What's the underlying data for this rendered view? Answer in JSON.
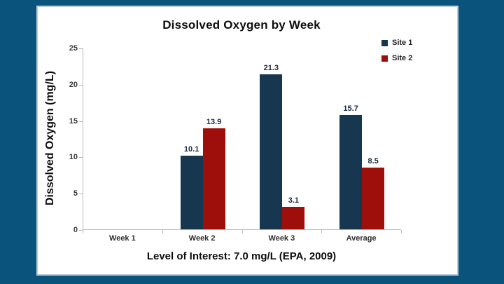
{
  "page": {
    "background_color": "#0a537d",
    "panel_background": "#ffffff",
    "panel_border_color": "#bccbd9"
  },
  "chart_data": {
    "type": "bar",
    "title": "Dissolved Oxygen by Week",
    "categories": [
      "Week 1",
      "Week 2",
      "Week 3",
      "Average"
    ],
    "series": [
      {
        "name": "Site 1",
        "color": "#17364f",
        "values": [
          null,
          10.1,
          21.3,
          15.7
        ]
      },
      {
        "name": "Site 2",
        "color": "#9e0e0b",
        "values": [
          null,
          13.9,
          3.1,
          8.5
        ]
      }
    ],
    "data_labels": true,
    "xlabel": "",
    "ylabel": "Dissolved Oxygen (mg/L)",
    "ylim": [
      0,
      25
    ],
    "yticks": [
      0,
      5,
      10,
      15,
      20,
      25
    ],
    "grid": false,
    "legend_position": "top-right",
    "axis_color": "#b4bac0",
    "footnote": "Level of Interest: 7.0 mg/L (EPA, 2009)"
  }
}
